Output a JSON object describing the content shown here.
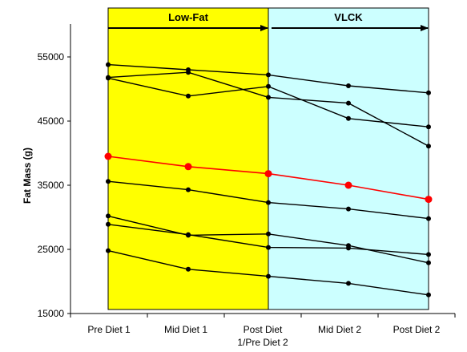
{
  "chart_data": {
    "type": "line",
    "title": "",
    "xlabel": "",
    "ylabel": "Fat Mass (g)",
    "ylim": [
      15000,
      60000
    ],
    "yticks": [
      "15000",
      "25000",
      "35000",
      "45000",
      "55000"
    ],
    "categories": [
      [
        "Pre Diet 1"
      ],
      [
        "Mid Diet 1"
      ],
      [
        "Post Diet",
        "1/Pre Diet 2"
      ],
      [
        "Mid Diet 2"
      ],
      [
        "Post Diet 2"
      ]
    ],
    "phases": [
      {
        "label": "Low-Fat",
        "from": 0,
        "to": 2,
        "color": "#ffff00"
      },
      {
        "label": "VLCK",
        "from": 2,
        "to": 4,
        "color": "#ccffff"
      }
    ],
    "highlight_color": "#ff0000",
    "series_color": "#000000",
    "series": [
      {
        "values": [
          53800,
          53000,
          52200,
          50500,
          49400
        ]
      },
      {
        "values": [
          51800,
          52600,
          48700,
          47800,
          41100
        ]
      },
      {
        "values": [
          51700,
          48900,
          50400,
          45400,
          44100
        ]
      },
      {
        "values": [
          39500,
          37900,
          36800,
          35000,
          32800
        ],
        "highlight": true
      },
      {
        "values": [
          35600,
          34300,
          32300,
          31300,
          29800
        ]
      },
      {
        "values": [
          30200,
          27200,
          27400,
          25600,
          22900
        ]
      },
      {
        "values": [
          28900,
          27300,
          25300,
          25200,
          24200
        ]
      },
      {
        "values": [
          24800,
          21900,
          20800,
          19700,
          17900
        ]
      }
    ]
  }
}
